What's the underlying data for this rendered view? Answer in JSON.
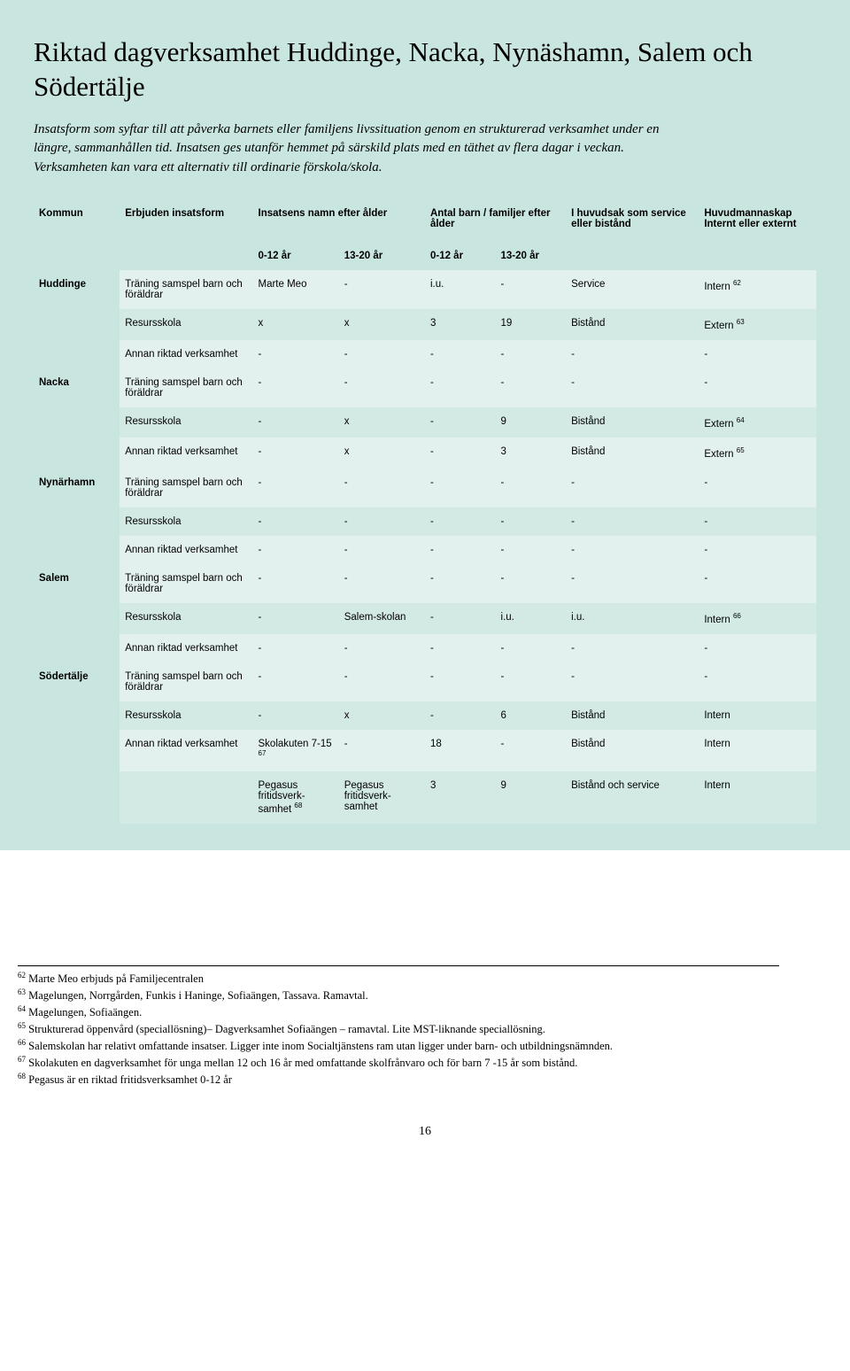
{
  "colors": {
    "page_bg": "#c9e5e0",
    "row_light": "#e3f1ee",
    "row_dark": "#d3e9e4",
    "text": "#000000"
  },
  "title": "Riktad dagverksamhet Huddinge, Nacka, Nynäshamn, Salem och Södertälje",
  "intro": "Insatsform som syftar till att påverka barnets eller familjens livssituation genom en strukturerad verksamhet under en längre, sammanhållen tid. Insatsen ges utanför hemmet på särskild plats med en täthet av flera dagar i veckan. Verksamheten kan vara ett alternativ till ordinarie förskola/skola.",
  "headers": {
    "kommun": "Kommun",
    "form": "Erbjuden insatsform",
    "insats": "Insatsens namn efter ålder",
    "antal": "Antal barn / familjer efter ålder",
    "huvudsak": "I huvudsak som service eller bistånd",
    "huvudman": "Huvudmannaskap Internt eller externt"
  },
  "subheaders": {
    "a": "0-12 år",
    "b": "13-20 år",
    "c": "0-12 år",
    "d": "13-20 år"
  },
  "groups": [
    {
      "kommun": "Huddinge",
      "rows": [
        {
          "form": "Träning samspel barn och föräldrar",
          "a": "Marte Meo",
          "b": "-",
          "c": "i.u.",
          "d": "-",
          "e": "Service",
          "f": "Intern ",
          "ref": "62"
        },
        {
          "form": "Resursskola",
          "a": "x",
          "b": "x",
          "c": "3",
          "d": "19",
          "e": "Bistånd",
          "f": "Extern ",
          "ref": "63"
        },
        {
          "form": "Annan riktad verksamhet",
          "a": "-",
          "b": "-",
          "c": "-",
          "d": "-",
          "e": "-",
          "f": "-"
        }
      ]
    },
    {
      "kommun": "Nacka",
      "rows": [
        {
          "form": "Träning samspel barn och föräldrar",
          "a": "-",
          "b": "-",
          "c": "-",
          "d": "-",
          "e": "-",
          "f": "-"
        },
        {
          "form": "Resursskola",
          "a": "-",
          "b": "x",
          "c": "-",
          "d": "9",
          "e": "Bistånd",
          "f": "Extern ",
          "ref": "64"
        },
        {
          "form": "Annan riktad verksamhet",
          "a": "-",
          "b": "x",
          "c": "-",
          "d": "3",
          "e": "Bistånd",
          "f": "Extern ",
          "ref": "65"
        }
      ]
    },
    {
      "kommun": "Nynärhamn",
      "rows": [
        {
          "form": "Träning samspel barn och föräldrar",
          "a": "-",
          "b": "-",
          "c": "-",
          "d": "-",
          "e": "-",
          "f": "-"
        },
        {
          "form": "Resursskola",
          "a": "-",
          "b": "-",
          "c": "-",
          "d": "-",
          "e": "-",
          "f": "-"
        },
        {
          "form": "Annan riktad verksamhet",
          "a": "-",
          "b": "-",
          "c": "-",
          "d": "-",
          "e": "-",
          "f": "-"
        }
      ]
    },
    {
      "kommun": "Salem",
      "rows": [
        {
          "form": "Träning samspel barn och föräldrar",
          "a": "-",
          "b": "-",
          "c": "-",
          "d": "-",
          "e": "-",
          "f": "-"
        },
        {
          "form": "Resursskola",
          "a": "-",
          "b": "Salem-skolan",
          "c": "-",
          "d": "i.u.",
          "e": "i.u.",
          "f": "Intern ",
          "ref": "66"
        },
        {
          "form": "Annan riktad verksamhet",
          "a": "-",
          "b": "-",
          "c": "-",
          "d": "-",
          "e": "-",
          "f": "-"
        }
      ]
    },
    {
      "kommun": "Södertälje",
      "rows": [
        {
          "form": "Träning samspel barn och föräldrar",
          "a": "-",
          "b": "-",
          "c": "-",
          "d": "-",
          "e": "-",
          "f": "-"
        },
        {
          "form": "Resursskola",
          "a": "-",
          "b": "x",
          "c": "-",
          "d": "6",
          "e": "Bistånd",
          "f": "Intern"
        },
        {
          "form": "Annan riktad verksamhet",
          "a": "Skolakuten 7-15 ",
          "aref": "67",
          "b": "-",
          "c": "18",
          "d": "-",
          "e": "Bistånd",
          "f": "Intern"
        },
        {
          "form": "",
          "a": "Pegasus fritidsverk-samhet ",
          "aref": "68",
          "b": "Pegasus fritidsverk-samhet",
          "c": "3",
          "d": "9",
          "e": "Bistånd och service",
          "f": "Intern"
        }
      ]
    }
  ],
  "footnotes": [
    {
      "n": "62",
      "t": "Marte Meo erbjuds på Familjecentralen"
    },
    {
      "n": "63",
      "t": "Magelungen, Norrgården, Funkis i Haninge, Sofiaängen, Tassava. Ramavtal."
    },
    {
      "n": "64",
      "t": "Magelungen, Sofiaängen."
    },
    {
      "n": "65",
      "t": "Strukturerad öppenvård (speciallösning)– Dagverksamhet Sofiaängen – ramavtal. Lite MST-liknande speciallösning."
    },
    {
      "n": "66",
      "t": "Salemskolan har relativt omfattande insatser. Ligger inte inom Socialtjänstens ram utan ligger under barn- och utbildningsnämnden."
    },
    {
      "n": "67",
      "t": "Skolakuten en dagverksamhet för unga mellan 12 och 16 år med omfattande skolfrånvaro och för barn 7 -15 år som bistånd."
    },
    {
      "n": "68",
      "t": "Pegasus är en riktad fritidsverksamhet 0-12 år"
    }
  ],
  "pagenum": "16"
}
